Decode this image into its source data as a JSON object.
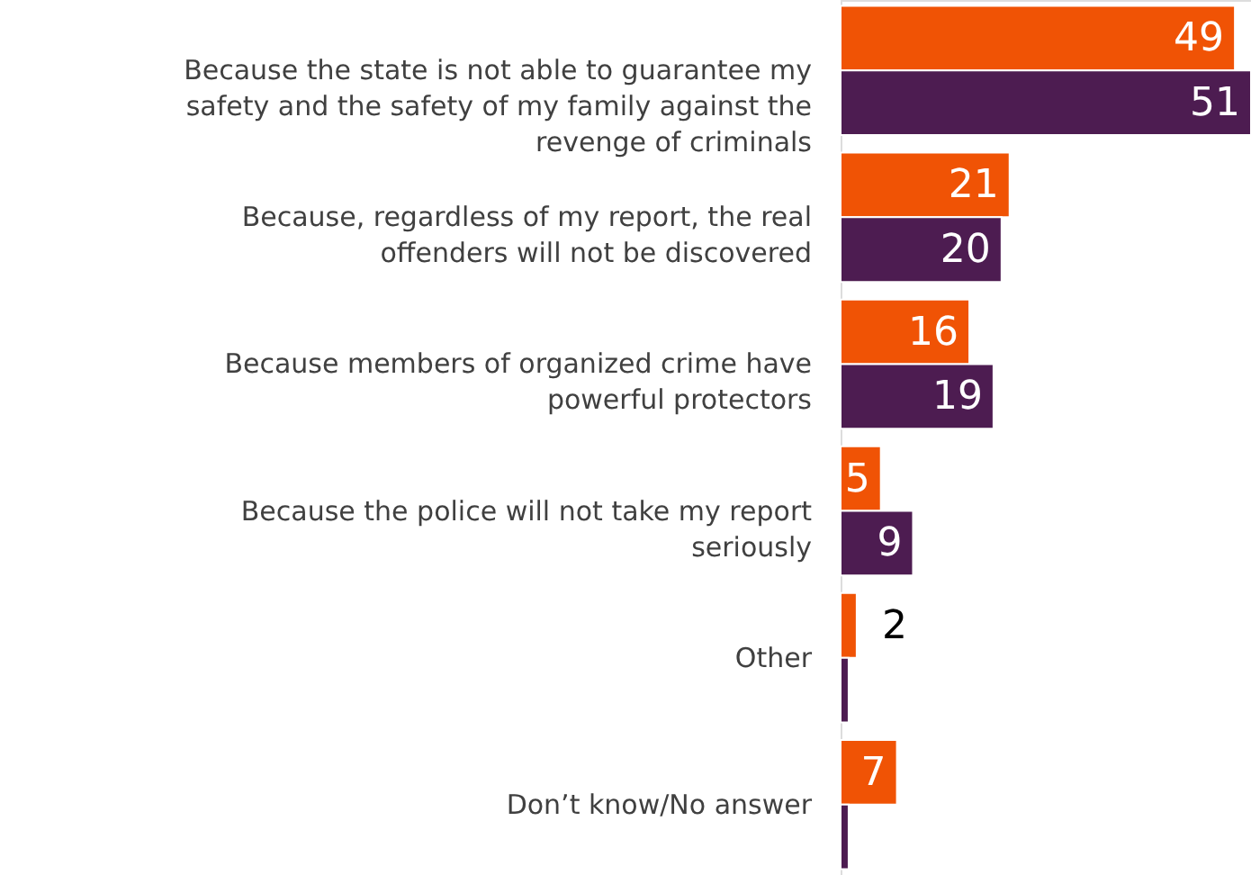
{
  "chart_data": {
    "type": "bar",
    "orientation": "horizontal",
    "categories": [
      "Because the state is not able to guarantee my safety and the safety of my family against the revenge of criminals",
      "Because, regardless of my report, the real offenders will not be discovered",
      "Because members of organized crime have powerful protectors",
      "Because the police will not take my report seriously",
      "Other",
      "Don’t know/No answer"
    ],
    "series": [
      {
        "color": "#f05305",
        "values": [
          49,
          21,
          16,
          5,
          2,
          7
        ],
        "value_labels": [
          "49",
          "21",
          "16",
          "5",
          "2",
          "7"
        ]
      },
      {
        "color": "#4d1c51",
        "values": [
          51,
          20,
          19,
          9,
          1,
          1
        ],
        "value_labels": [
          "51",
          "20",
          "19",
          "9",
          null,
          null
        ]
      }
    ]
  }
}
